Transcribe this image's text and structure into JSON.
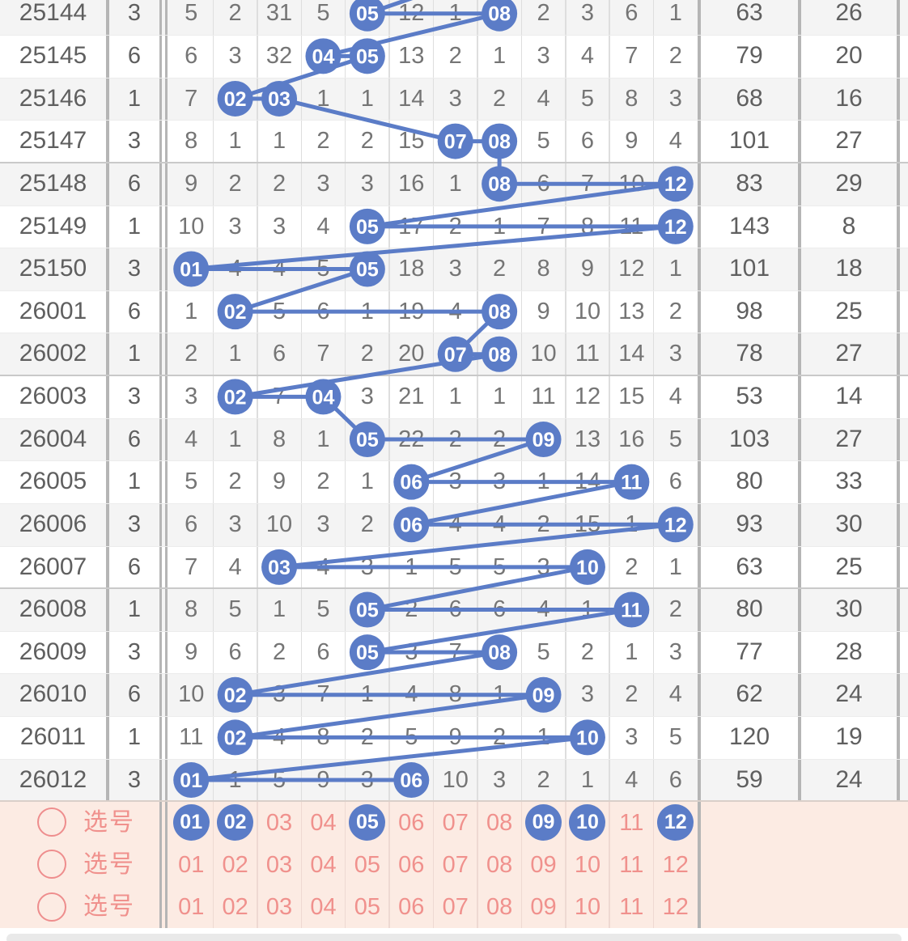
{
  "colors": {
    "ball_blue": "#5b7cc7",
    "line_blue": "#5b7cc7",
    "row_alt_bg": "#f4f4f4",
    "cell_text": "#757575",
    "id_text": "#5f5f5f",
    "thick_line": "#b5b5b5",
    "thin_border": "#dedede",
    "group_sep": "#c9c9c9",
    "row_sep": "#ececec",
    "pink_bg": "#fcebe3",
    "pink_text": "#f0918d",
    "pink_border": "#eed9d2",
    "radio_ring": "#ee8d8d",
    "bottom_bar": "#e9e9e9"
  },
  "chart": {
    "ball_columns": [
      "01",
      "02",
      "03",
      "04",
      "05",
      "06",
      "07",
      "08",
      "09",
      "10",
      "11",
      "12"
    ],
    "rows": [
      {
        "draw": "25144",
        "day": "3",
        "cells": [
          "5",
          "2",
          "31",
          "5",
          "05",
          "12",
          "1",
          "08",
          "2",
          "3",
          "6",
          "1"
        ],
        "balls": [
          5,
          8
        ],
        "stats": [
          "63",
          "26"
        ]
      },
      {
        "draw": "25145",
        "day": "6",
        "cells": [
          "6",
          "3",
          "32",
          "04",
          "05",
          "13",
          "2",
          "1",
          "3",
          "4",
          "7",
          "2"
        ],
        "balls": [
          4,
          5
        ],
        "stats": [
          "79",
          "20"
        ]
      },
      {
        "draw": "25146",
        "day": "1",
        "cells": [
          "7",
          "02",
          "03",
          "1",
          "1",
          "14",
          "3",
          "2",
          "4",
          "5",
          "8",
          "3"
        ],
        "balls": [
          2,
          3
        ],
        "stats": [
          "68",
          "16"
        ]
      },
      {
        "draw": "25147",
        "day": "3",
        "cells": [
          "8",
          "1",
          "1",
          "2",
          "2",
          "15",
          "07",
          "08",
          "5",
          "6",
          "9",
          "4"
        ],
        "balls": [
          7,
          8
        ],
        "stats": [
          "101",
          "27"
        ]
      },
      {
        "draw": "25148",
        "day": "6",
        "cells": [
          "9",
          "2",
          "2",
          "3",
          "3",
          "16",
          "1",
          "08",
          "6",
          "7",
          "10",
          "12"
        ],
        "balls": [
          8,
          12
        ],
        "stats": [
          "83",
          "29"
        ]
      },
      {
        "draw": "25149",
        "day": "1",
        "cells": [
          "10",
          "3",
          "3",
          "4",
          "05",
          "17",
          "2",
          "1",
          "7",
          "8",
          "11",
          "12"
        ],
        "balls": [
          5,
          12
        ],
        "stats": [
          "143",
          "8"
        ]
      },
      {
        "draw": "25150",
        "day": "3",
        "cells": [
          "01",
          "4",
          "4",
          "5",
          "05",
          "18",
          "3",
          "2",
          "8",
          "9",
          "12",
          "1"
        ],
        "balls": [
          1,
          5
        ],
        "stats": [
          "101",
          "18"
        ]
      },
      {
        "draw": "26001",
        "day": "6",
        "cells": [
          "1",
          "02",
          "5",
          "6",
          "1",
          "19",
          "4",
          "08",
          "9",
          "10",
          "13",
          "2"
        ],
        "balls": [
          2,
          8
        ],
        "stats": [
          "98",
          "25"
        ]
      },
      {
        "draw": "26002",
        "day": "1",
        "cells": [
          "2",
          "1",
          "6",
          "7",
          "2",
          "20",
          "07",
          "08",
          "10",
          "11",
          "14",
          "3"
        ],
        "balls": [
          7,
          8
        ],
        "stats": [
          "78",
          "27"
        ]
      },
      {
        "draw": "26003",
        "day": "3",
        "cells": [
          "3",
          "02",
          "7",
          "04",
          "3",
          "21",
          "1",
          "1",
          "11",
          "12",
          "15",
          "4"
        ],
        "balls": [
          2,
          4
        ],
        "stats": [
          "53",
          "14"
        ]
      },
      {
        "draw": "26004",
        "day": "6",
        "cells": [
          "4",
          "1",
          "8",
          "1",
          "05",
          "22",
          "2",
          "2",
          "09",
          "13",
          "16",
          "5"
        ],
        "balls": [
          5,
          9
        ],
        "stats": [
          "103",
          "27"
        ]
      },
      {
        "draw": "26005",
        "day": "1",
        "cells": [
          "5",
          "2",
          "9",
          "2",
          "1",
          "06",
          "3",
          "3",
          "1",
          "14",
          "11",
          "6"
        ],
        "balls": [
          6,
          11
        ],
        "stats": [
          "80",
          "33"
        ]
      },
      {
        "draw": "26006",
        "day": "3",
        "cells": [
          "6",
          "3",
          "10",
          "3",
          "2",
          "06",
          "4",
          "4",
          "2",
          "15",
          "1",
          "12"
        ],
        "balls": [
          6,
          12
        ],
        "stats": [
          "93",
          "30"
        ]
      },
      {
        "draw": "26007",
        "day": "6",
        "cells": [
          "7",
          "4",
          "03",
          "4",
          "3",
          "1",
          "5",
          "5",
          "3",
          "10",
          "2",
          "1"
        ],
        "balls": [
          3,
          10
        ],
        "stats": [
          "63",
          "25"
        ]
      },
      {
        "draw": "26008",
        "day": "1",
        "cells": [
          "8",
          "5",
          "1",
          "5",
          "05",
          "2",
          "6",
          "6",
          "4",
          "1",
          "11",
          "2"
        ],
        "balls": [
          5,
          11
        ],
        "stats": [
          "80",
          "30"
        ]
      },
      {
        "draw": "26009",
        "day": "3",
        "cells": [
          "9",
          "6",
          "2",
          "6",
          "05",
          "3",
          "7",
          "08",
          "5",
          "2",
          "1",
          "3"
        ],
        "balls": [
          5,
          8
        ],
        "stats": [
          "77",
          "28"
        ]
      },
      {
        "draw": "26010",
        "day": "6",
        "cells": [
          "10",
          "02",
          "3",
          "7",
          "1",
          "4",
          "8",
          "1",
          "09",
          "3",
          "2",
          "4"
        ],
        "balls": [
          2,
          9
        ],
        "stats": [
          "62",
          "24"
        ]
      },
      {
        "draw": "26011",
        "day": "1",
        "cells": [
          "11",
          "02",
          "4",
          "8",
          "2",
          "5",
          "9",
          "2",
          "1",
          "10",
          "3",
          "5"
        ],
        "balls": [
          2,
          10
        ],
        "stats": [
          "120",
          "19"
        ]
      },
      {
        "draw": "26012",
        "day": "3",
        "cells": [
          "01",
          "1",
          "5",
          "9",
          "3",
          "06",
          "10",
          "3",
          "2",
          "1",
          "4",
          "6"
        ],
        "balls": [
          1,
          6
        ],
        "stats": [
          "59",
          "24"
        ]
      }
    ]
  },
  "selection": {
    "label": "选号",
    "numbers": [
      "01",
      "02",
      "03",
      "04",
      "05",
      "06",
      "07",
      "08",
      "09",
      "10",
      "11",
      "12"
    ],
    "rows": [
      {
        "selected": [
          "01",
          "02",
          "05",
          "09",
          "10",
          "12"
        ]
      },
      {
        "selected": []
      },
      {
        "selected": []
      }
    ]
  }
}
